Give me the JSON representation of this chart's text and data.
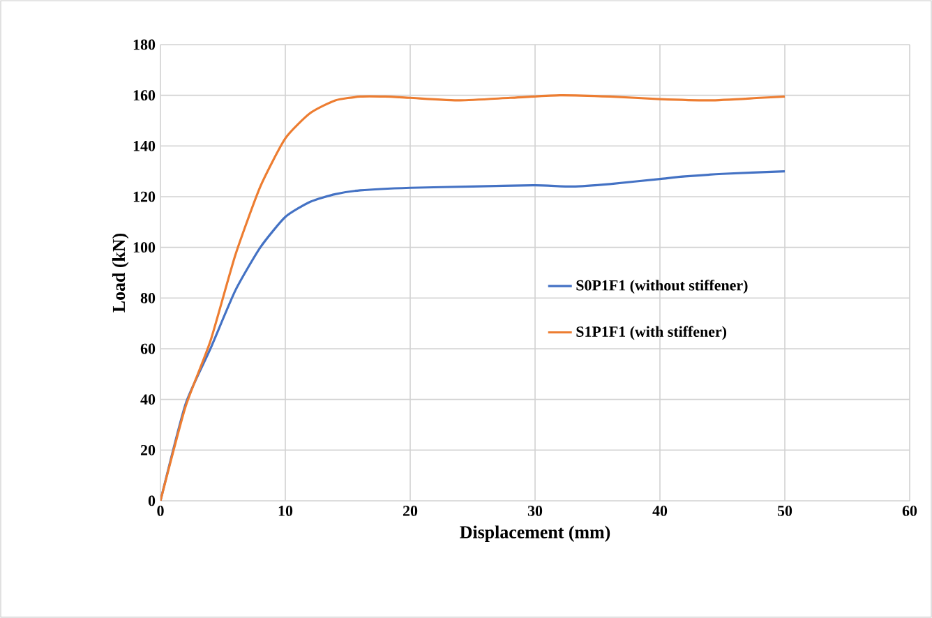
{
  "chart_data": {
    "type": "line",
    "xlabel": "Displacement (mm)",
    "ylabel": "Load (kN)",
    "xlim": [
      0,
      60
    ],
    "xticks": [
      0,
      10,
      20,
      30,
      40,
      50,
      60
    ],
    "ylim": [
      0,
      180
    ],
    "yticks": [
      0,
      20,
      40,
      60,
      80,
      100,
      120,
      140,
      160,
      180
    ],
    "grid": true,
    "legend": "right",
    "marker": "none",
    "line_style": "solid",
    "series": [
      {
        "name": "S0P1F1 (without stiffener)",
        "color": "#4472c4",
        "x": [
          0,
          2,
          4,
          6,
          8,
          10,
          12,
          14,
          16,
          20,
          25,
          30,
          33,
          36,
          40,
          42,
          45,
          50
        ],
        "values": [
          0,
          38,
          60,
          83,
          100,
          112,
          118,
          121,
          122.5,
          123.5,
          124,
          124.5,
          124,
          125,
          127,
          128,
          129,
          130
        ]
      },
      {
        "name": "S1P1F1 (with stiffener)",
        "color": "#ed7d31",
        "x": [
          0,
          2,
          4,
          6,
          8,
          10,
          12,
          14,
          16,
          18,
          20,
          24,
          28,
          32,
          36,
          40,
          44,
          48,
          50
        ],
        "values": [
          0,
          37,
          63,
          97,
          124,
          143,
          153,
          158,
          159.5,
          159.5,
          159,
          158,
          159,
          160,
          159.5,
          158.5,
          158,
          159,
          159.5
        ]
      }
    ]
  }
}
